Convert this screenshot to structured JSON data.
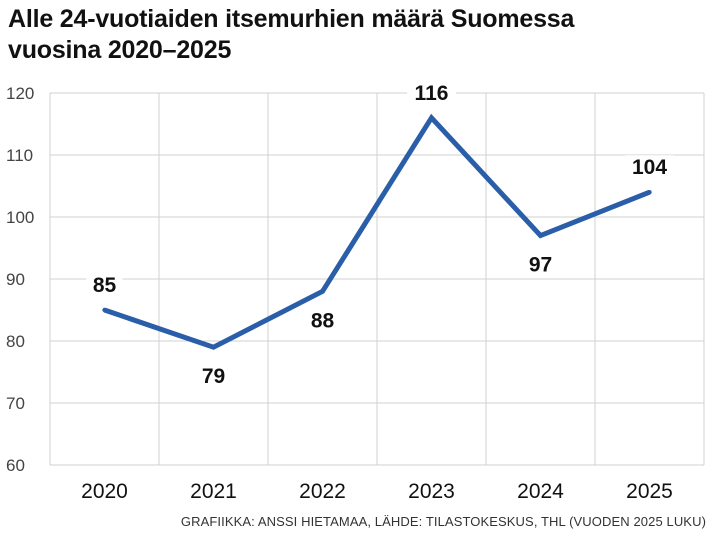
{
  "title_lines": [
    "Alle 24-vuotiaiden itsemurhien määrä Suomessa",
    "vuosina 2020–2025"
  ],
  "footer": "GRAFIIKKA: ANSSI HIETAMAA, LÄHDE: TILASTOKESKUS, THL (VUODEN 2025 LUKU)",
  "colors": {
    "line": "#2a5ea8",
    "grid": "#d0d0d0"
  },
  "chart_data": {
    "type": "line",
    "title": "Alle 24-vuotiaiden itsemurhien määrä Suomessa vuosina 2020–2025",
    "categories": [
      "2020",
      "2021",
      "2022",
      "2023",
      "2024",
      "2025"
    ],
    "values": [
      85,
      79,
      88,
      116,
      97,
      104
    ],
    "data_labels": [
      "85",
      "79",
      "88",
      "116",
      "97",
      "104"
    ],
    "yticks": [
      "60",
      "70",
      "80",
      "90",
      "100",
      "110",
      "120"
    ],
    "ylim": [
      60,
      120
    ],
    "grid": true,
    "xlabel": "",
    "ylabel": ""
  }
}
